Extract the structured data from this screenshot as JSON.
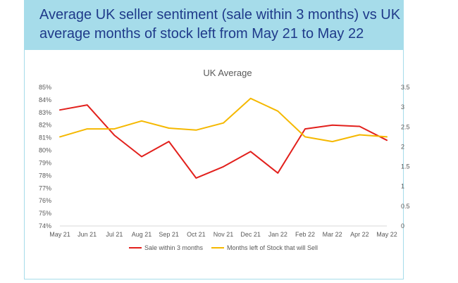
{
  "header": {
    "title": "Average UK seller sentiment (sale within 3 months) vs UK average months of stock left from May 21 to May 22"
  },
  "chart_data": {
    "type": "line",
    "title": "UK Average",
    "categories": [
      "May 21",
      "Jun 21",
      "Jul 21",
      "Aug 21",
      "Sep 21",
      "Oct 21",
      "Nov 21",
      "Dec 21",
      "Jan 22",
      "Feb 22",
      "Mar 22",
      "Apr 22",
      "May 22"
    ],
    "series": [
      {
        "name": "Sale within 3 months",
        "axis": "left",
        "color": "#e2201c",
        "values": [
          83.2,
          83.6,
          81.2,
          79.5,
          80.7,
          77.8,
          78.7,
          79.9,
          78.2,
          81.7,
          82.0,
          81.9,
          80.8
        ]
      },
      {
        "name": "Months left of Stock that will Sell",
        "axis": "right",
        "color": "#f5b800",
        "values": [
          2.25,
          2.45,
          2.45,
          2.65,
          2.47,
          2.42,
          2.6,
          3.22,
          2.9,
          2.25,
          2.13,
          2.3,
          2.25
        ]
      }
    ],
    "y_left": {
      "range": [
        74,
        85
      ],
      "ticks": [
        "74%",
        "75%",
        "76%",
        "77%",
        "78%",
        "79%",
        "80%",
        "81%",
        "82%",
        "83%",
        "84%",
        "85%"
      ]
    },
    "y_right": {
      "range": [
        0,
        3.5
      ],
      "ticks": [
        "0",
        "0.5",
        "1",
        "1.5",
        "2",
        "2.5",
        "3",
        "3.5"
      ]
    },
    "grid": false,
    "legend": "bottom"
  }
}
